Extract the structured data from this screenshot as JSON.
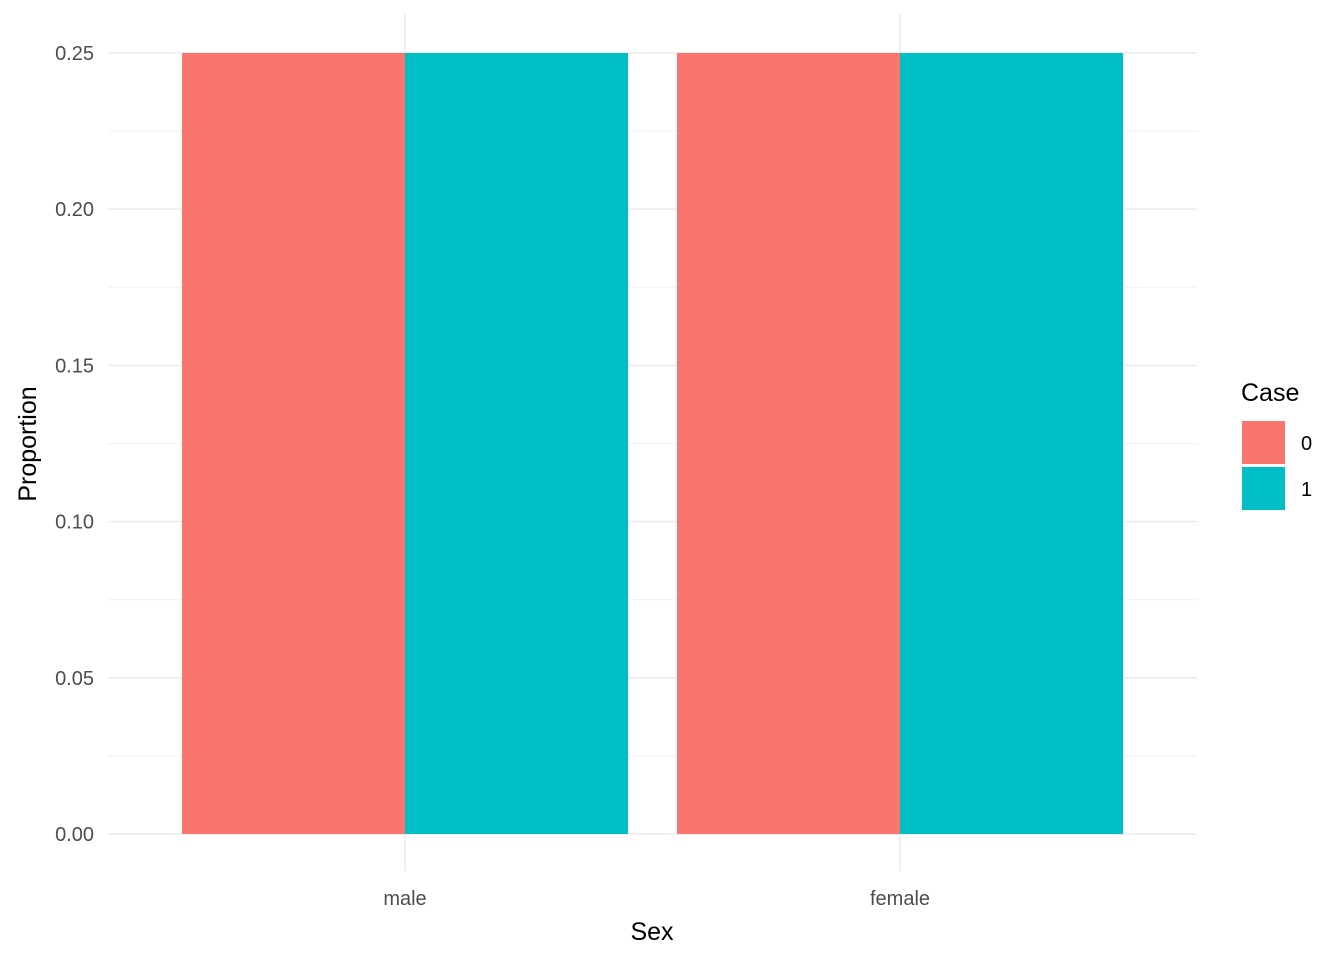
{
  "chart_data": {
    "type": "bar",
    "xlabel": "Sex",
    "ylabel": "Proportion",
    "categories": [
      "male",
      "female"
    ],
    "series": [
      {
        "name": "0",
        "values": [
          0.25,
          0.25
        ],
        "color": "#F8766D"
      },
      {
        "name": "1",
        "values": [
          0.25,
          0.25
        ],
        "color": "#00BFC4"
      }
    ],
    "ylim": [
      0,
      0.25
    ],
    "y_ticks": [
      "0.00",
      "0.05",
      "0.10",
      "0.15",
      "0.20",
      "0.25"
    ],
    "y_tick_values": [
      0,
      0.05,
      0.1,
      0.15,
      0.2,
      0.25
    ],
    "grid": true,
    "legend": {
      "title": "Case",
      "position": "right"
    }
  }
}
